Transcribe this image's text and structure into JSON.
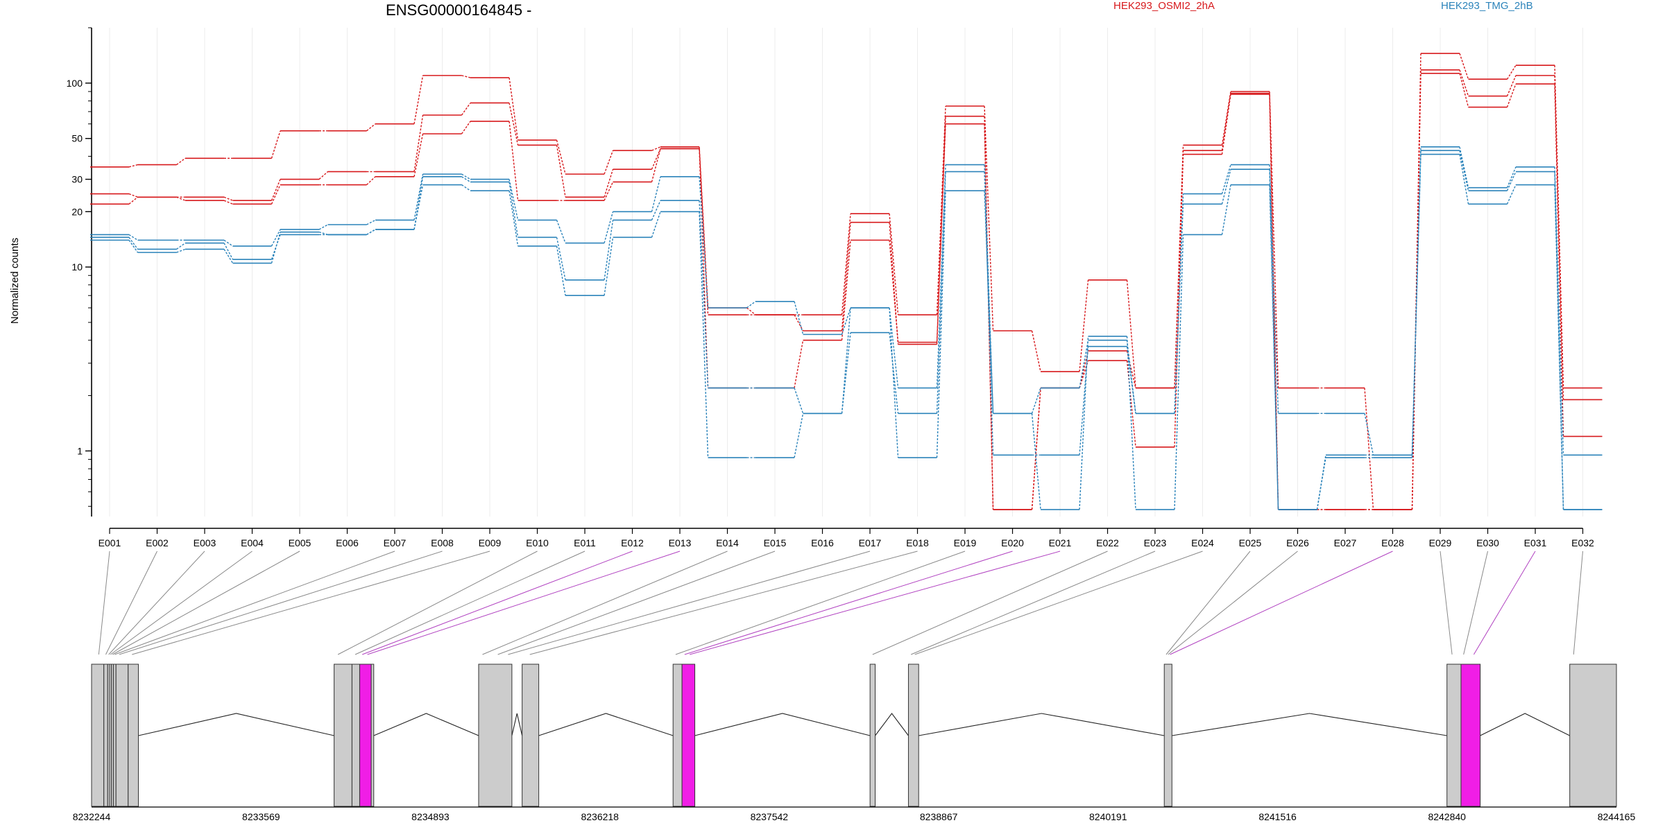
{
  "chart_data": {
    "type": "line",
    "title": "ENSG00000164845 -",
    "ylabel": "Normalized counts",
    "xlabel": "",
    "y_scale": "log",
    "y_ticks": [
      1,
      10,
      20,
      30,
      50,
      100
    ],
    "y_floor_value": 0.48,
    "grid": "vertical-light",
    "legend_placement": "top-right",
    "categories": [
      "E001",
      "E002",
      "E003",
      "E004",
      "E005",
      "E006",
      "E007",
      "E008",
      "E009",
      "E010",
      "E011",
      "E012",
      "E013",
      "E014",
      "E015",
      "E016",
      "E017",
      "E018",
      "E019",
      "E020",
      "E021",
      "E022",
      "E023",
      "E024",
      "E025",
      "E026",
      "E027",
      "E028",
      "E029",
      "E030",
      "E031",
      "E032"
    ],
    "groups": [
      {
        "name": "HEK293_OSMI2_2hA",
        "color": "#d7191c"
      },
      {
        "name": "HEK293_TMG_2hB",
        "color": "#2b83ba"
      }
    ],
    "series": [
      {
        "group": 0,
        "values": [
          35,
          36,
          39,
          39,
          55,
          55,
          60,
          110,
          107,
          49,
          32,
          43,
          45,
          6.0,
          5.5,
          5.5,
          19.5,
          5.5,
          75,
          4.5,
          2.7,
          8.5,
          2.2,
          46,
          90,
          2.2,
          2.2,
          0.48,
          145,
          105,
          125,
          2.2
        ]
      },
      {
        "group": 0,
        "values": [
          25,
          24,
          24,
          23,
          30,
          33,
          33,
          67,
          78,
          46,
          24,
          34,
          44,
          5.5,
          5.5,
          4.5,
          17.5,
          3.8,
          66,
          0.48,
          2.2,
          3.5,
          2.2,
          43,
          88,
          0.48,
          0.48,
          0.48,
          118,
          85,
          110,
          1.9
        ]
      },
      {
        "group": 0,
        "values": [
          22,
          24,
          23,
          22,
          28,
          28,
          31,
          53,
          62,
          23,
          23,
          29,
          44,
          2.2,
          2.2,
          4.0,
          14,
          3.9,
          60,
          0.48,
          2.2,
          3.1,
          1.05,
          41,
          87,
          0.48,
          0.48,
          0.48,
          113,
          74,
          99,
          1.2
        ]
      },
      {
        "group": 1,
        "values": [
          15,
          14,
          14,
          13,
          16,
          17,
          18,
          32,
          30,
          18,
          13.5,
          20,
          31,
          6.0,
          6.5,
          4.3,
          6.0,
          2.2,
          36,
          1.6,
          2.2,
          4.0,
          1.6,
          25,
          36,
          1.6,
          1.6,
          0.95,
          45,
          27,
          35,
          0.95
        ]
      },
      {
        "group": 1,
        "values": [
          14.5,
          12.5,
          13.5,
          11,
          15,
          15,
          16,
          31,
          29,
          14.5,
          8.5,
          18,
          23,
          2.2,
          2.2,
          1.6,
          4.4,
          1.6,
          33,
          0.95,
          0.95,
          3.7,
          1.6,
          22,
          34,
          0.48,
          0.92,
          0.92,
          43,
          26,
          33,
          0.48
        ]
      },
      {
        "group": 1,
        "values": [
          14,
          12,
          12.5,
          10.5,
          15.5,
          15,
          16,
          28,
          26,
          13,
          7.0,
          14.5,
          20,
          0.92,
          0.92,
          1.6,
          6.0,
          0.92,
          26,
          1.6,
          0.48,
          4.2,
          0.48,
          15,
          28,
          0.48,
          0.95,
          0.95,
          41,
          22,
          28,
          0.48
        ]
      }
    ],
    "genomic_axis": {
      "ticks": [
        8232244,
        8233569,
        8234893,
        8236218,
        8237542,
        8238867,
        8240191,
        8241516,
        8242840,
        8244165
      ],
      "range": [
        8232244,
        8244165
      ]
    },
    "exon_blocks": [
      {
        "start": 8232244,
        "end": 8232340,
        "highlight": false
      },
      {
        "start": 8232340,
        "end": 8232370,
        "highlight": false
      },
      {
        "start": 8232370,
        "end": 8232385,
        "highlight": false
      },
      {
        "start": 8232385,
        "end": 8232400,
        "highlight": false
      },
      {
        "start": 8232400,
        "end": 8232415,
        "highlight": false
      },
      {
        "start": 8232415,
        "end": 8232435,
        "highlight": false
      },
      {
        "start": 8232435,
        "end": 8232530,
        "highlight": false
      },
      {
        "start": 8232530,
        "end": 8232610,
        "highlight": false
      },
      {
        "start": 8234140,
        "end": 8234280,
        "highlight": false
      },
      {
        "start": 8234280,
        "end": 8234340,
        "highlight": false
      },
      {
        "start": 8234340,
        "end": 8234430,
        "highlight": true
      },
      {
        "start": 8234430,
        "end": 8234450,
        "highlight": false
      },
      {
        "start": 8235270,
        "end": 8235530,
        "highlight": false
      },
      {
        "start": 8235610,
        "end": 8235740,
        "highlight": false
      },
      {
        "start": 8236790,
        "end": 8236860,
        "highlight": false
      },
      {
        "start": 8236860,
        "end": 8236960,
        "highlight": true
      },
      {
        "start": 8238330,
        "end": 8238370,
        "highlight": false
      },
      {
        "start": 8238630,
        "end": 8238710,
        "highlight": false
      },
      {
        "start": 8240630,
        "end": 8240690,
        "highlight": false
      },
      {
        "start": 8242840,
        "end": 8242950,
        "highlight": false
      },
      {
        "start": 8242950,
        "end": 8243100,
        "highlight": true
      },
      {
        "start": 8243800,
        "end": 8244165,
        "highlight": false
      }
    ],
    "connector_targets": [
      8232300,
      8232355,
      8232378,
      8232392,
      8232408,
      8232425,
      8232460,
      8232560,
      8234170,
      8234305,
      8234360,
      8234400,
      8235300,
      8235420,
      8235500,
      8235670,
      8236810,
      8236880,
      8236920,
      8238350,
      8238650,
      8238680,
      8240645,
      8240660,
      8240675,
      8242880,
      8242970,
      8243050,
      8243830
    ],
    "connector_highlight": [
      false,
      false,
      false,
      false,
      false,
      false,
      false,
      false,
      false,
      false,
      true,
      true,
      false,
      false,
      false,
      false,
      false,
      true,
      true,
      false,
      false,
      false,
      false,
      false,
      true,
      false,
      false,
      true,
      false
    ]
  }
}
